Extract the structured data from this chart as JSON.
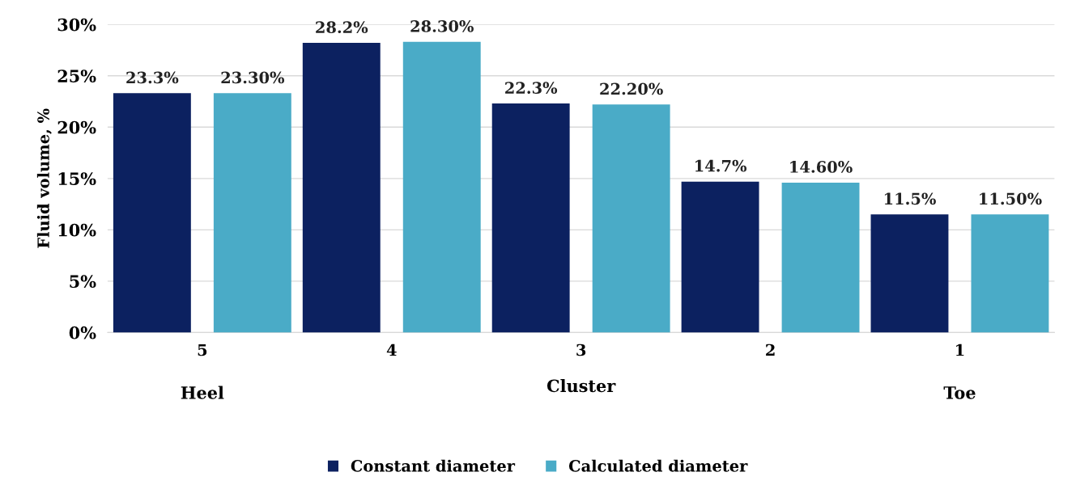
{
  "chart_data": {
    "type": "bar",
    "ylabel": "Fluid volume, %",
    "xlabel": "Cluster",
    "categories": [
      "5",
      "4",
      "3",
      "2",
      "1"
    ],
    "series": [
      {
        "name": "Constant diameter",
        "color": "#0c2160",
        "values": [
          23.3,
          28.2,
          22.3,
          14.7,
          11.5
        ],
        "value_labels": [
          "23.3%",
          "28.2%",
          "22.3%",
          "14.7%",
          "11.5%"
        ]
      },
      {
        "name": "Calculated diameter",
        "color": "#4aabc7",
        "values": [
          23.3,
          28.3,
          22.2,
          14.6,
          11.5
        ],
        "value_labels": [
          "23.30%",
          "28.30%",
          "22.20%",
          "14.60%",
          "11.50%"
        ]
      }
    ],
    "ylim": [
      0,
      30
    ],
    "yticks": [
      {
        "value": 0,
        "label": "0%"
      },
      {
        "value": 5,
        "label": "5%"
      },
      {
        "value": 10,
        "label": "10%"
      },
      {
        "value": 15,
        "label": "15%"
      },
      {
        "value": 20,
        "label": "20%"
      },
      {
        "value": 25,
        "label": "25%"
      },
      {
        "value": 30,
        "label": "30%"
      }
    ],
    "grid": "y",
    "legend": "bottom",
    "annotations": [
      "Heel",
      "Toe"
    ]
  }
}
